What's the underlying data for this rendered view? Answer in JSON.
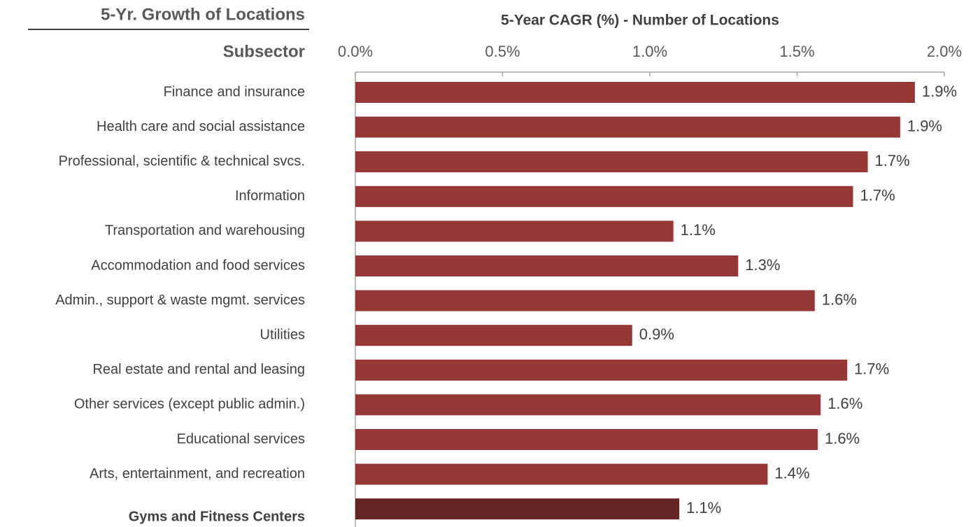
{
  "chart_data": {
    "type": "bar",
    "orientation": "horizontal",
    "header": "5-Yr. Growth of Locations",
    "category_header": "Subsector",
    "title": "5-Year CAGR  (%) - Number of Locations",
    "categories": [
      "Finance and insurance",
      "Health care and social assistance",
      "Professional, scientific & technical svcs.",
      "Information",
      "Transportation and warehousing",
      "Accommodation and food services",
      "Admin., support & waste mgmt. services",
      "Utilities",
      "Real estate and rental and leasing",
      "Other services (except public admin.)",
      "Educational services",
      "Arts, entertainment, and recreation",
      "Gyms and Fitness Centers"
    ],
    "values": [
      1.9,
      1.85,
      1.74,
      1.69,
      1.08,
      1.3,
      1.56,
      0.94,
      1.67,
      1.58,
      1.57,
      1.4,
      1.1
    ],
    "value_labels": [
      "1.9%",
      "1.9%",
      "1.7%",
      "1.7%",
      "1.1%",
      "1.3%",
      "1.6%",
      "0.9%",
      "1.7%",
      "1.6%",
      "1.6%",
      "1.4%",
      "1.1%"
    ],
    "colors": [
      "#953735",
      "#953735",
      "#953735",
      "#953735",
      "#953735",
      "#953735",
      "#953735",
      "#953735",
      "#953735",
      "#953735",
      "#953735",
      "#953735",
      "#632523"
    ],
    "xlim": [
      0,
      2
    ],
    "xticks": [
      {
        "value": 0,
        "label": "0.0%"
      },
      {
        "value": 0.5,
        "label": "0.5%"
      },
      {
        "value": 1,
        "label": "1.0%"
      },
      {
        "value": 1.5,
        "label": "1.5%"
      },
      {
        "value": 2,
        "label": "2.0%"
      }
    ]
  }
}
